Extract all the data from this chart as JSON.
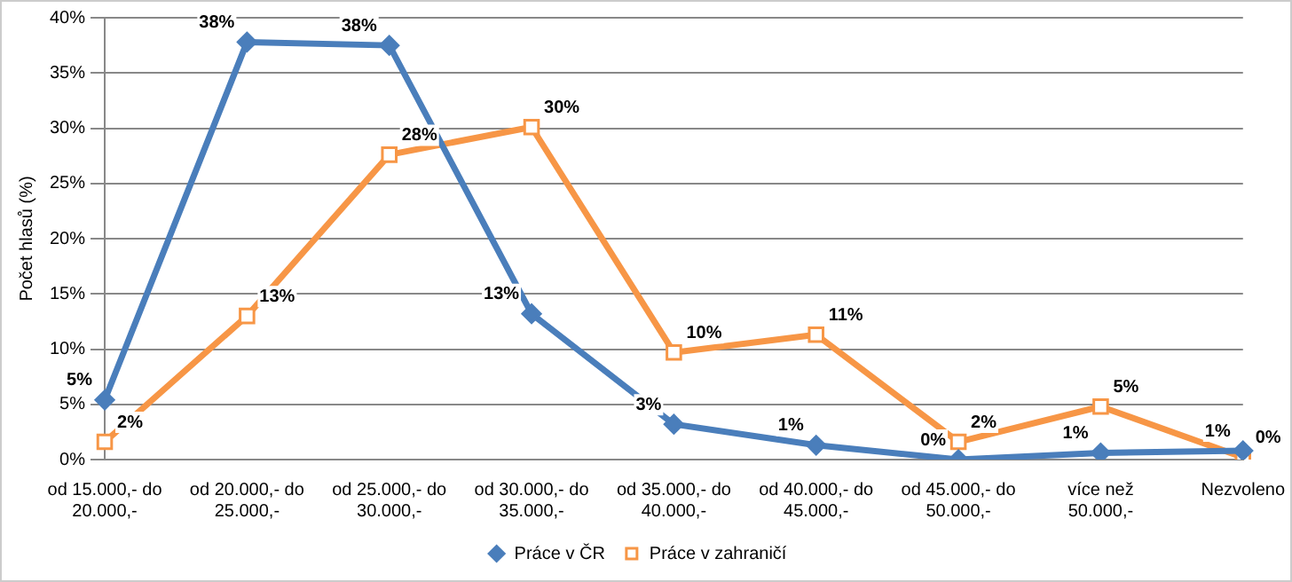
{
  "chart_data": {
    "type": "line",
    "ylabel": "Počet hlasů (%)",
    "categories": [
      "od 15.000,- do 20.000,-",
      "od 20.000,- do 25.000,-",
      "od 25.000,- do 30.000,-",
      "od 30.000,- do 35.000,-",
      "od 35.000,- do 40.000,-",
      "od 40.000,- do 45.000,-",
      "od 45.000,- do 50.000,-",
      "více než 50.000,-",
      "Nezvoleno"
    ],
    "series": [
      {
        "name": "Práce v ČR",
        "color": "#4a7ebb",
        "marker": "diamond",
        "values": [
          5.4,
          37.8,
          37.5,
          13.2,
          3.2,
          1.3,
          0,
          0.6,
          0.8
        ],
        "value_labels": [
          "5%",
          "38%",
          "38%",
          "13%",
          "3%",
          "1%",
          "0%",
          "1%",
          "1%"
        ]
      },
      {
        "name": "Práce v zahraničí",
        "color": "#f79646",
        "marker": "square",
        "values": [
          1.6,
          13,
          27.6,
          30.1,
          9.7,
          11.3,
          1.6,
          4.8,
          0.2
        ],
        "value_labels": [
          "2%",
          "13%",
          "28%",
          "30%",
          "10%",
          "11%",
          "2%",
          "5%",
          "0%"
        ]
      }
    ],
    "ylim": [
      0,
      40
    ],
    "yticks": [
      {
        "value": 0,
        "label": "0%"
      },
      {
        "value": 5,
        "label": "5%"
      },
      {
        "value": 10,
        "label": "10%"
      },
      {
        "value": 15,
        "label": "15%"
      },
      {
        "value": 20,
        "label": "20%"
      },
      {
        "value": 25,
        "label": "25%"
      },
      {
        "value": 30,
        "label": "30%"
      },
      {
        "value": 35,
        "label": "35%"
      },
      {
        "value": 40,
        "label": "40%"
      }
    ],
    "grid": "y",
    "legend": "bottom",
    "line_style": "solid"
  }
}
